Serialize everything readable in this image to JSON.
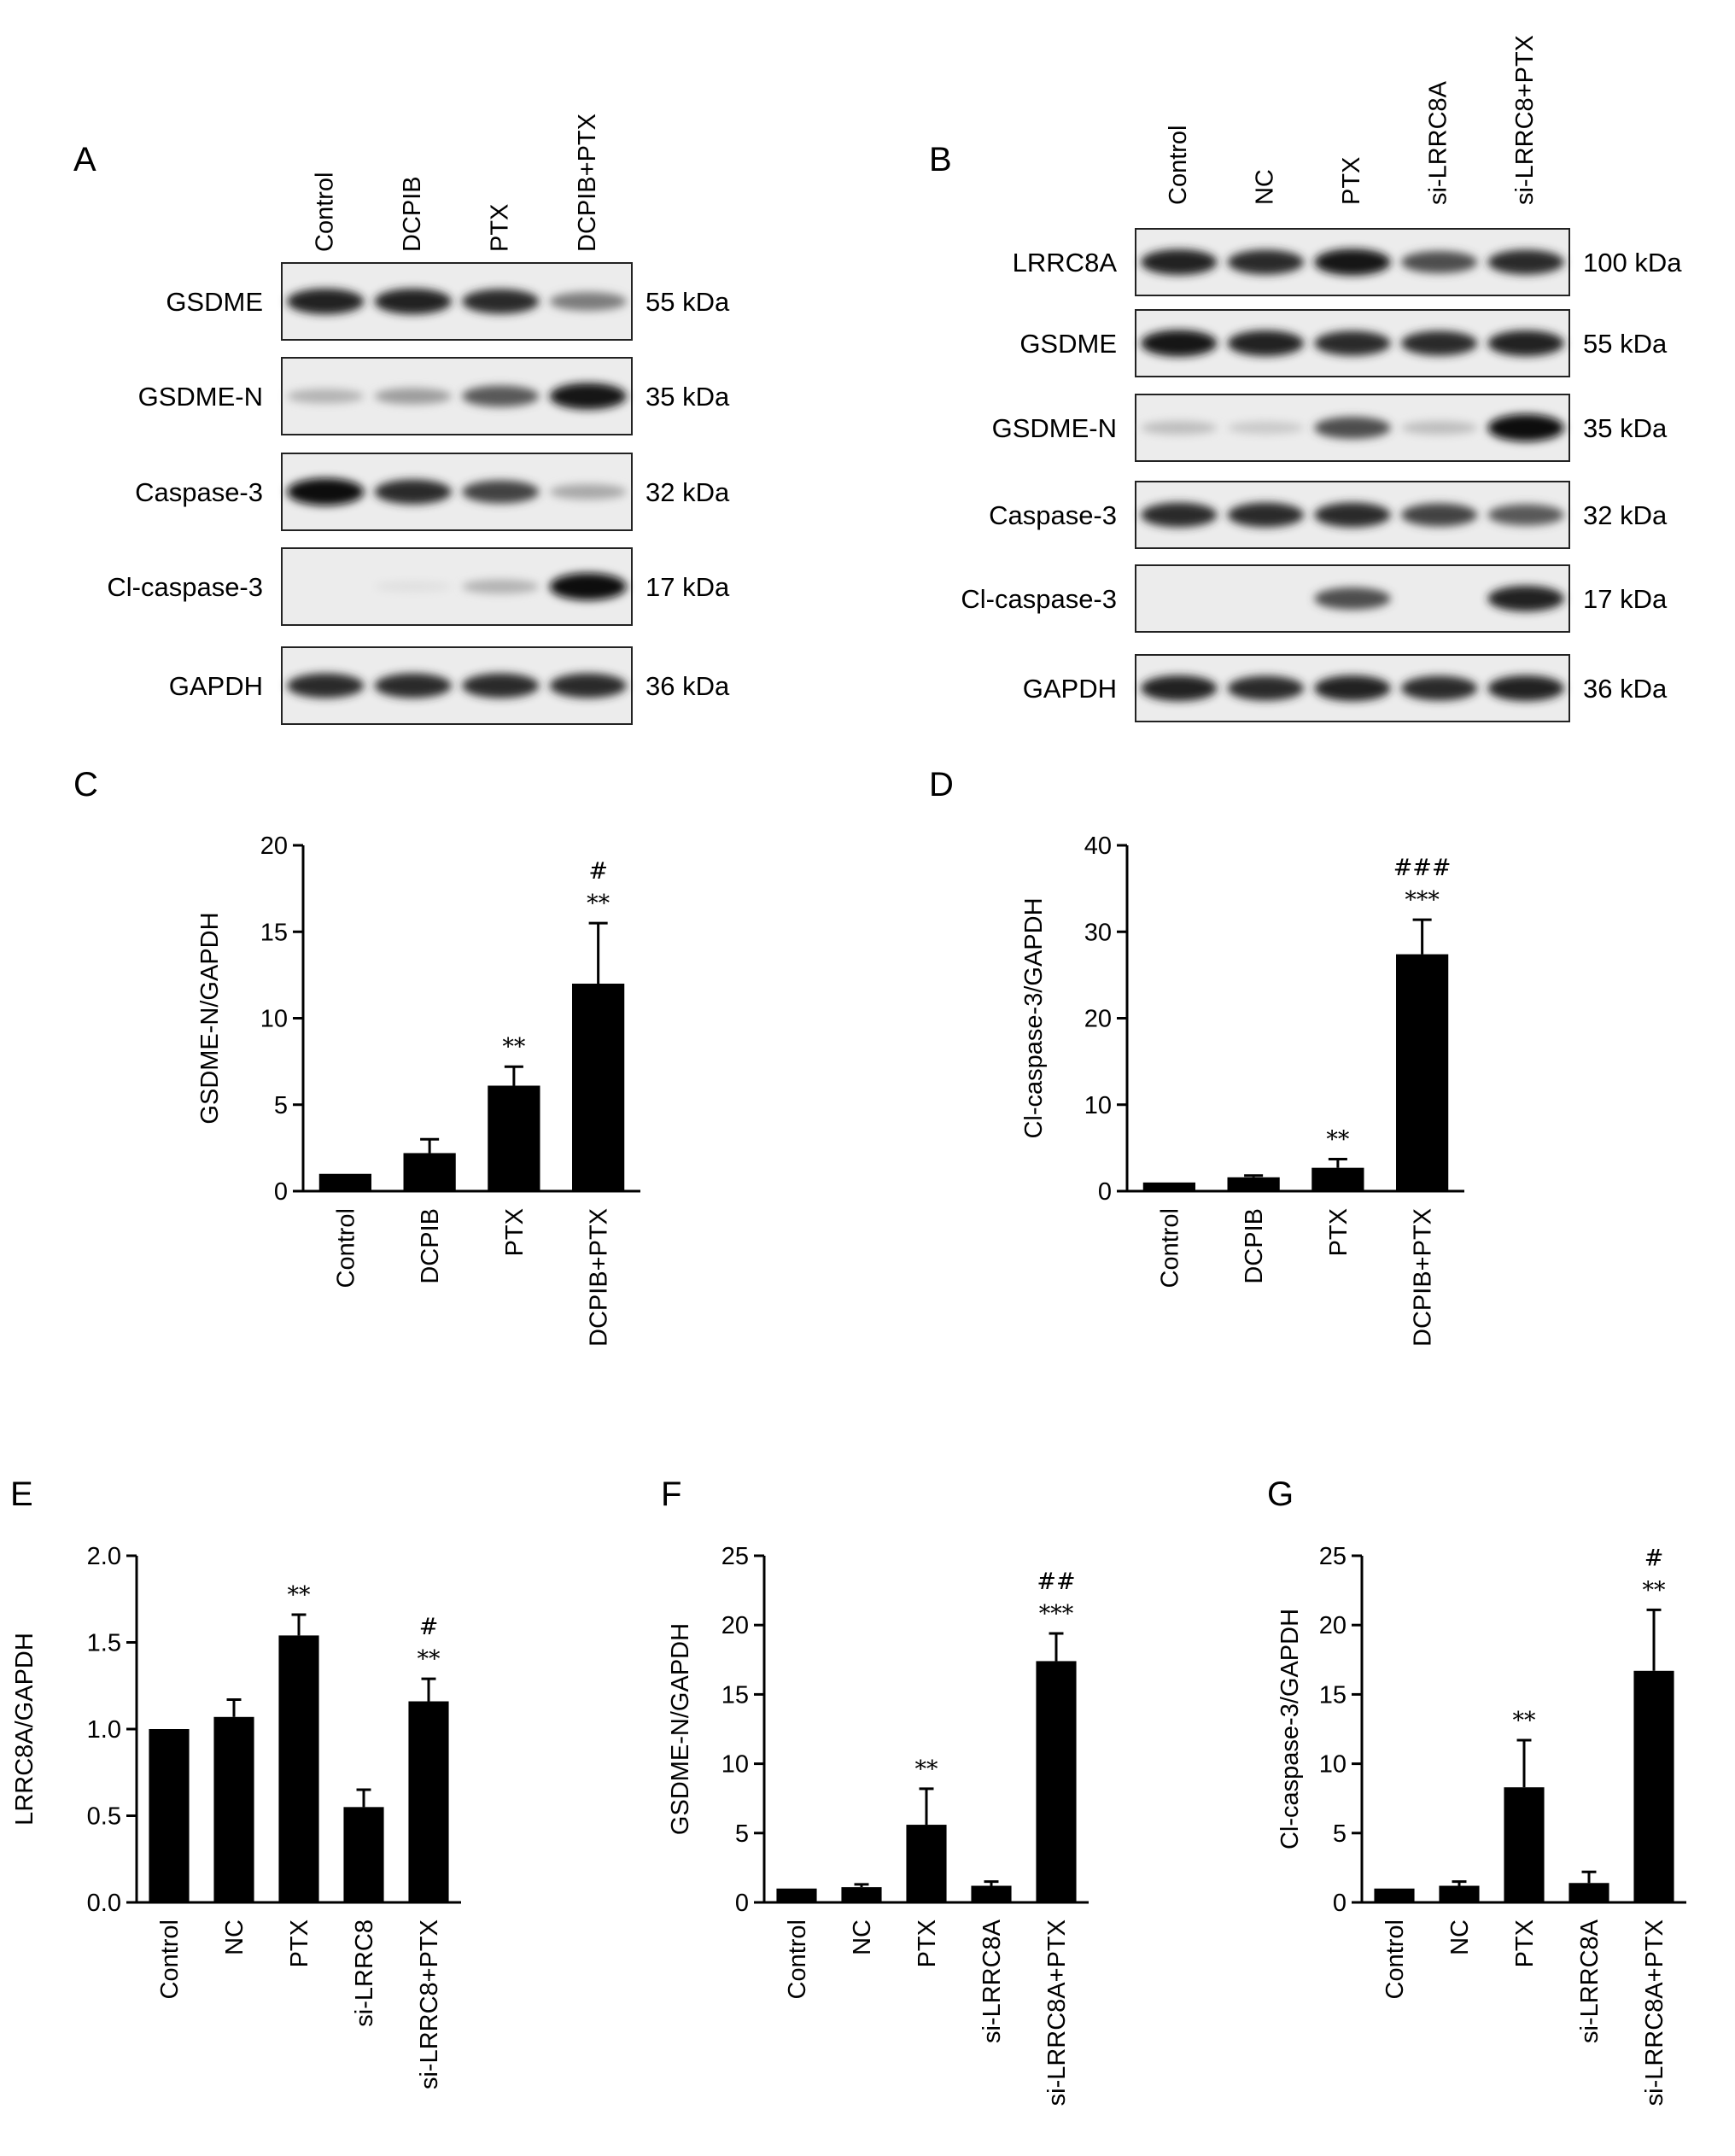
{
  "figure": {
    "panel_letters": {
      "A": "A",
      "B": "B",
      "C": "C",
      "D": "D",
      "E": "E",
      "F": "F",
      "G": "G"
    }
  },
  "blot_A": {
    "lanes": [
      "Control",
      "DCPIB",
      "PTX",
      "DCPIB+PTX"
    ],
    "rows": [
      {
        "label": "GSDME",
        "kda": "55 kDa",
        "intensity": [
          0.9,
          0.9,
          0.85,
          0.5
        ]
      },
      {
        "label": "GSDME-N",
        "kda": "35 kDa",
        "intensity": [
          0.25,
          0.35,
          0.65,
          0.95
        ]
      },
      {
        "label": "Caspase-3",
        "kda": "32 kDa",
        "intensity": [
          1.0,
          0.85,
          0.75,
          0.3
        ]
      },
      {
        "label": "Cl-caspase-3",
        "kda": "17 kDa",
        "intensity": [
          0.0,
          0.05,
          0.25,
          1.0
        ]
      },
      {
        "label": "GAPDH",
        "kda": "36 kDa",
        "intensity": [
          0.85,
          0.85,
          0.85,
          0.85
        ]
      }
    ]
  },
  "blot_B": {
    "lanes": [
      "Control",
      "NC",
      "PTX",
      "si-LRRC8A",
      "si-LRRC8+PTX"
    ],
    "rows": [
      {
        "label": "LRRC8A",
        "kda": "100 kDa",
        "intensity": [
          0.9,
          0.85,
          0.95,
          0.7,
          0.85
        ]
      },
      {
        "label": "GSDME",
        "kda": "55 kDa",
        "intensity": [
          0.95,
          0.9,
          0.85,
          0.85,
          0.9
        ]
      },
      {
        "label": "GSDME-N",
        "kda": "35 kDa",
        "intensity": [
          0.2,
          0.15,
          0.7,
          0.2,
          1.0
        ]
      },
      {
        "label": "Caspase-3",
        "kda": "32 kDa",
        "intensity": [
          0.85,
          0.85,
          0.85,
          0.75,
          0.65
        ]
      },
      {
        "label": "Cl-caspase-3",
        "kda": "17 kDa",
        "intensity": [
          0.0,
          0.0,
          0.7,
          0.0,
          0.9
        ]
      },
      {
        "label": "GAPDH",
        "kda": "36 kDa",
        "intensity": [
          0.9,
          0.85,
          0.9,
          0.85,
          0.9
        ]
      }
    ]
  },
  "chart_data": [
    {
      "panel": "C",
      "type": "bar",
      "ylabel": "GSDME-N/GAPDH",
      "categories": [
        "Control",
        "DCPIB",
        "PTX",
        "DCPIB+PTX"
      ],
      "values": [
        1.0,
        2.2,
        6.1,
        12.0
      ],
      "errors": [
        0,
        0.8,
        1.1,
        3.5
      ],
      "ylim": [
        0,
        20
      ],
      "yticks": [
        "0",
        "5",
        "10",
        "15",
        "20"
      ],
      "annotations": [
        [],
        [],
        [
          "**"
        ],
        [
          "#",
          "**"
        ]
      ]
    },
    {
      "panel": "D",
      "type": "bar",
      "ylabel": "Cl-caspase-3/GAPDH",
      "categories": [
        "Control",
        "DCPIB",
        "PTX",
        "DCPIB+PTX"
      ],
      "values": [
        1.0,
        1.6,
        2.7,
        27.4
      ],
      "errors": [
        0,
        0.2,
        1.0,
        4.0
      ],
      "ylim": [
        0,
        40
      ],
      "yticks": [
        "0",
        "10",
        "20",
        "30",
        "40"
      ],
      "annotations": [
        [],
        [],
        [
          "**"
        ],
        [
          "###",
          "***"
        ]
      ]
    },
    {
      "panel": "E",
      "type": "bar",
      "ylabel": "LRRC8A/GAPDH",
      "categories": [
        "Control",
        "NC",
        "PTX",
        "si-LRRC8",
        "si-LRRC8+PTX"
      ],
      "values": [
        1.0,
        1.07,
        1.54,
        0.55,
        1.16
      ],
      "errors": [
        0,
        0.1,
        0.12,
        0.1,
        0.13
      ],
      "ylim": [
        0,
        2.0
      ],
      "yticks": [
        "0.0",
        "0.5",
        "1.0",
        "1.5",
        "2.0"
      ],
      "annotations": [
        [],
        [],
        [
          "**"
        ],
        [],
        [
          "#",
          "**"
        ]
      ]
    },
    {
      "panel": "F",
      "type": "bar",
      "ylabel": "GSDME-N/GAPDH",
      "categories": [
        "Control",
        "NC",
        "PTX",
        "si-LRRC8A",
        "si-LRRC8A+PTX"
      ],
      "values": [
        1.0,
        1.1,
        5.6,
        1.2,
        17.4
      ],
      "errors": [
        0,
        0.2,
        2.6,
        0.3,
        2.0
      ],
      "ylim": [
        0,
        25
      ],
      "yticks": [
        "0",
        "5",
        "10",
        "15",
        "20",
        "25"
      ],
      "annotations": [
        [],
        [],
        [
          "**"
        ],
        [],
        [
          "##",
          "***"
        ]
      ]
    },
    {
      "panel": "G",
      "type": "bar",
      "ylabel": "Cl-caspase-3/GAPDH",
      "categories": [
        "Control",
        "NC",
        "PTX",
        "si-LRRC8A",
        "si-LRRC8A+PTX"
      ],
      "values": [
        1.0,
        1.2,
        8.3,
        1.4,
        16.7
      ],
      "errors": [
        0,
        0.3,
        3.4,
        0.8,
        4.4
      ],
      "ylim": [
        0,
        25
      ],
      "yticks": [
        "0",
        "5",
        "10",
        "15",
        "20",
        "25"
      ],
      "annotations": [
        [],
        [],
        [
          "**"
        ],
        [],
        [
          "#",
          "**"
        ]
      ]
    }
  ]
}
